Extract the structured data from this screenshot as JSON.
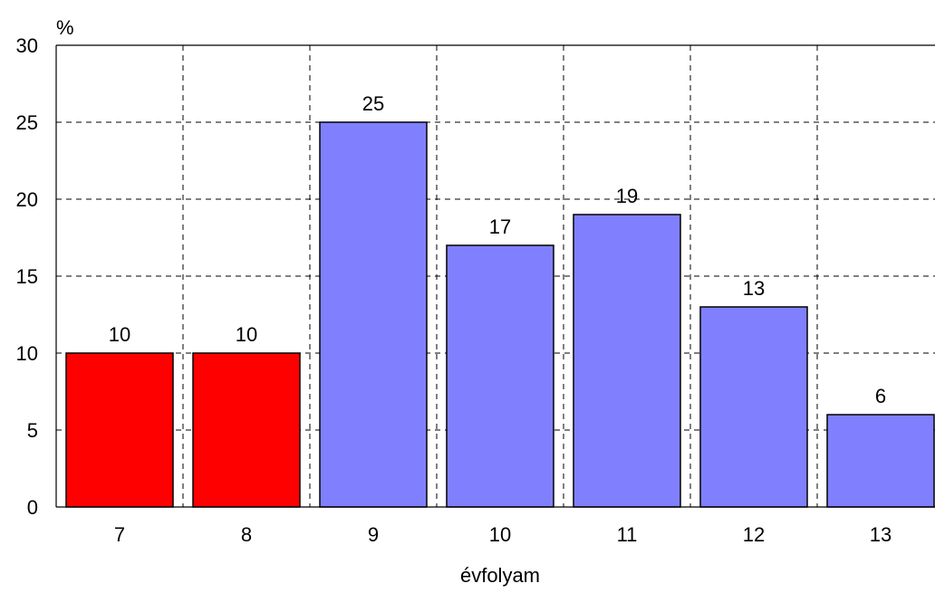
{
  "chart_data": {
    "type": "bar",
    "title": "",
    "ylabel": "%",
    "xlabel": "évfolyam",
    "categories": [
      "7",
      "8",
      "9",
      "10",
      "11",
      "12",
      "13"
    ],
    "values": [
      10,
      10,
      25,
      17,
      19,
      13,
      6
    ],
    "data_labels": [
      "10",
      "10",
      "25",
      "17",
      "19",
      "13",
      "6"
    ],
    "bar_colors": [
      "#ff0000",
      "#ff0000",
      "#8080ff",
      "#8080ff",
      "#8080ff",
      "#8080ff",
      "#8080ff"
    ],
    "ylim": [
      0,
      30
    ],
    "yticks": [
      0,
      5,
      10,
      15,
      20,
      25,
      30
    ],
    "ytick_labels": [
      "0",
      "5",
      "10",
      "15",
      "20",
      "25",
      "30"
    ],
    "grid": true,
    "grid_style": "dashed"
  }
}
